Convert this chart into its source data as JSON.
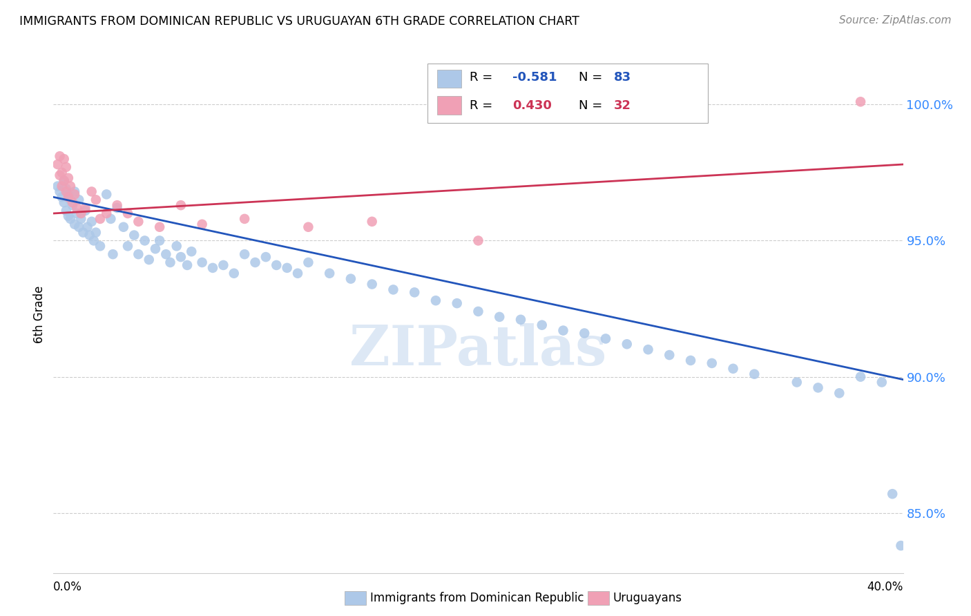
{
  "title": "IMMIGRANTS FROM DOMINICAN REPUBLIC VS URUGUAYAN 6TH GRADE CORRELATION CHART",
  "source": "Source: ZipAtlas.com",
  "ylabel": "6th Grade",
  "y_ticks": [
    0.85,
    0.9,
    0.95,
    1.0
  ],
  "y_tick_labels": [
    "85.0%",
    "90.0%",
    "95.0%",
    "100.0%"
  ],
  "x_min": 0.0,
  "x_max": 0.4,
  "y_min": 0.828,
  "y_max": 1.018,
  "blue_R": -0.581,
  "blue_N": 83,
  "pink_R": 0.43,
  "pink_N": 32,
  "blue_color": "#adc8e8",
  "blue_line_color": "#2255bb",
  "pink_color": "#f0a0b5",
  "pink_line_color": "#cc3355",
  "watermark": "ZIPatlas",
  "watermark_color": "#dde8f5",
  "blue_line_x0": 0.0,
  "blue_line_y0": 0.966,
  "blue_line_x1": 0.4,
  "blue_line_y1": 0.899,
  "pink_line_x0": 0.0,
  "pink_line_y0": 0.96,
  "pink_line_x1": 0.4,
  "pink_line_y1": 0.978,
  "blue_dots_x": [
    0.002,
    0.003,
    0.004,
    0.005,
    0.005,
    0.006,
    0.006,
    0.007,
    0.007,
    0.008,
    0.008,
    0.009,
    0.01,
    0.01,
    0.011,
    0.012,
    0.012,
    0.013,
    0.014,
    0.015,
    0.016,
    0.017,
    0.018,
    0.019,
    0.02,
    0.022,
    0.025,
    0.027,
    0.028,
    0.03,
    0.033,
    0.035,
    0.038,
    0.04,
    0.043,
    0.045,
    0.048,
    0.05,
    0.053,
    0.055,
    0.058,
    0.06,
    0.063,
    0.065,
    0.07,
    0.075,
    0.08,
    0.085,
    0.09,
    0.095,
    0.1,
    0.105,
    0.11,
    0.115,
    0.12,
    0.13,
    0.14,
    0.15,
    0.16,
    0.17,
    0.18,
    0.19,
    0.2,
    0.21,
    0.22,
    0.23,
    0.24,
    0.25,
    0.26,
    0.27,
    0.28,
    0.29,
    0.3,
    0.31,
    0.32,
    0.33,
    0.35,
    0.36,
    0.37,
    0.38,
    0.39,
    0.395,
    0.399
  ],
  "blue_dots_y": [
    0.97,
    0.968,
    0.966,
    0.972,
    0.964,
    0.969,
    0.961,
    0.967,
    0.959,
    0.965,
    0.958,
    0.963,
    0.968,
    0.956,
    0.96,
    0.965,
    0.955,
    0.958,
    0.953,
    0.961,
    0.955,
    0.952,
    0.957,
    0.95,
    0.953,
    0.948,
    0.967,
    0.958,
    0.945,
    0.962,
    0.955,
    0.948,
    0.952,
    0.945,
    0.95,
    0.943,
    0.947,
    0.95,
    0.945,
    0.942,
    0.948,
    0.944,
    0.941,
    0.946,
    0.942,
    0.94,
    0.941,
    0.938,
    0.945,
    0.942,
    0.944,
    0.941,
    0.94,
    0.938,
    0.942,
    0.938,
    0.936,
    0.934,
    0.932,
    0.931,
    0.928,
    0.927,
    0.924,
    0.922,
    0.921,
    0.919,
    0.917,
    0.916,
    0.914,
    0.912,
    0.91,
    0.908,
    0.906,
    0.905,
    0.903,
    0.901,
    0.898,
    0.896,
    0.894,
    0.9,
    0.898,
    0.857,
    0.838
  ],
  "pink_dots_x": [
    0.002,
    0.003,
    0.003,
    0.004,
    0.004,
    0.005,
    0.005,
    0.006,
    0.006,
    0.007,
    0.007,
    0.008,
    0.009,
    0.01,
    0.011,
    0.013,
    0.015,
    0.018,
    0.02,
    0.022,
    0.025,
    0.03,
    0.035,
    0.04,
    0.05,
    0.06,
    0.07,
    0.09,
    0.12,
    0.15,
    0.2,
    0.38
  ],
  "pink_dots_y": [
    0.978,
    0.981,
    0.974,
    0.975,
    0.97,
    0.98,
    0.972,
    0.977,
    0.968,
    0.973,
    0.966,
    0.97,
    0.964,
    0.967,
    0.962,
    0.96,
    0.962,
    0.968,
    0.965,
    0.958,
    0.96,
    0.963,
    0.96,
    0.957,
    0.955,
    0.963,
    0.956,
    0.958,
    0.955,
    0.957,
    0.95,
    1.001
  ]
}
